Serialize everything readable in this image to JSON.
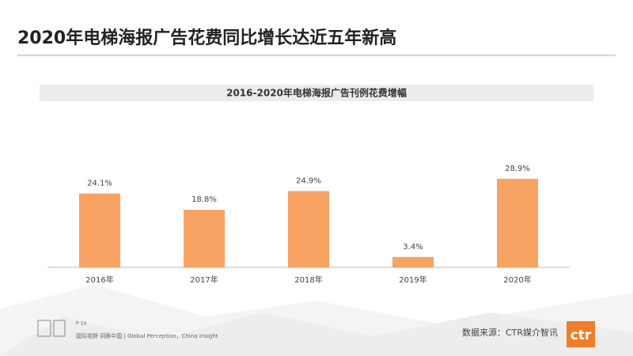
{
  "header": {
    "title": "2020年电梯海报广告花费同比增长达近五年新高"
  },
  "chart_data": {
    "type": "bar",
    "title": "2016-2020年电梯海报广告刊例花费增幅",
    "categories": [
      "2016年",
      "2017年",
      "2018年",
      "2019年",
      "2020年"
    ],
    "values": [
      24.1,
      18.8,
      24.9,
      3.4,
      28.9
    ],
    "value_labels": [
      "24.1%",
      "18.8%",
      "24.9%",
      "3.4%",
      "28.9%"
    ],
    "color": "#f8a263"
  },
  "footer": {
    "page": "P 14",
    "slogan": "国际视野 洞察中国 | Global Perception，China Insight",
    "source": "数据来源：CTR媒介智讯",
    "logo": "ctr"
  }
}
